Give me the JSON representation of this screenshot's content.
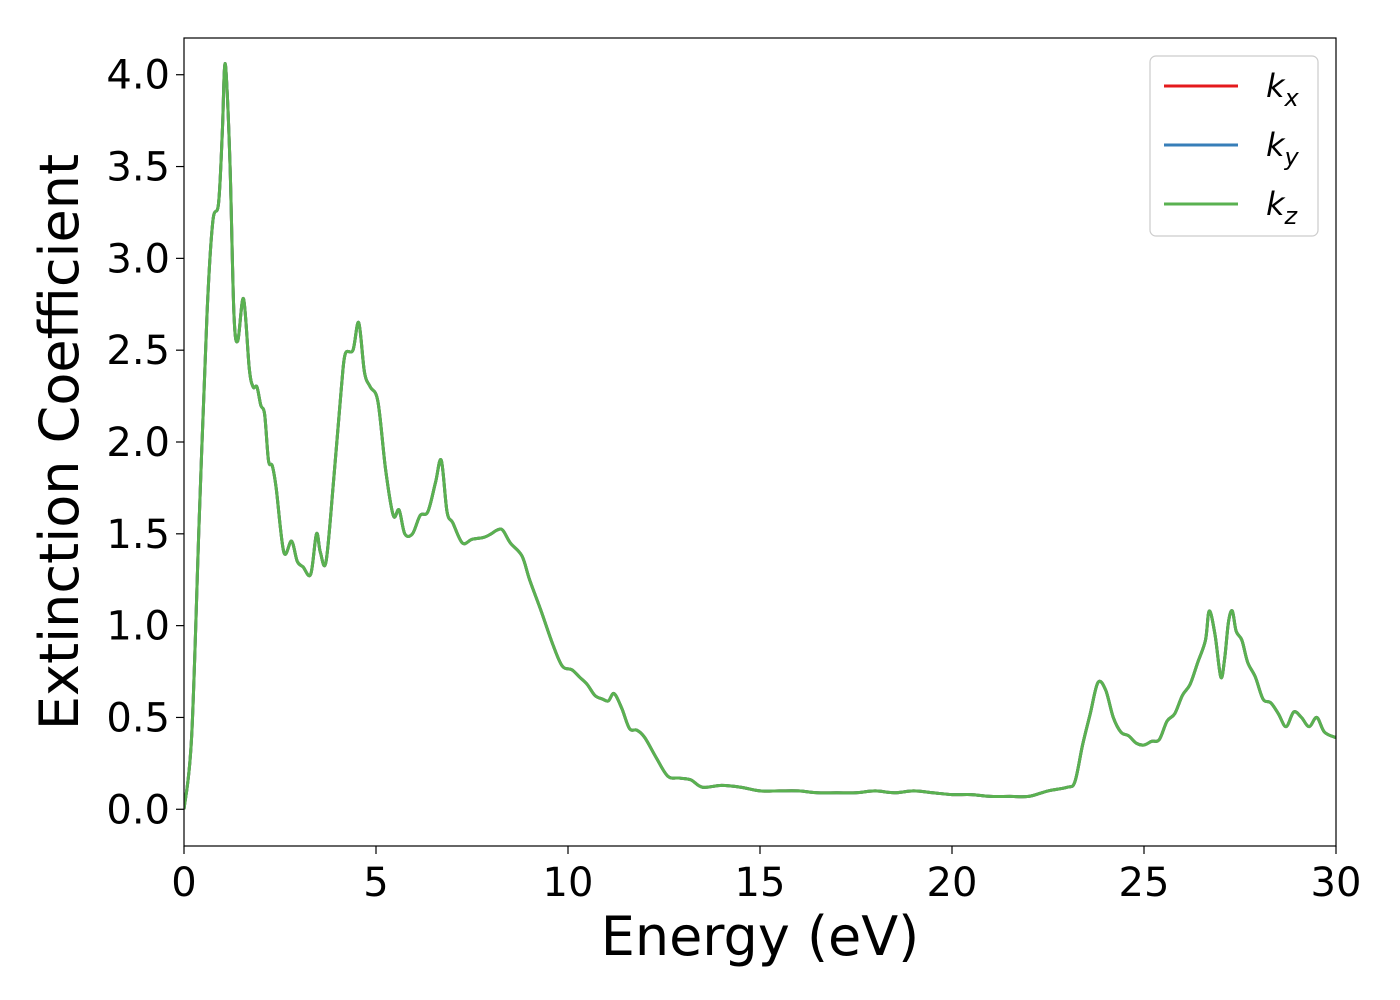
{
  "chart_data": {
    "type": "line",
    "title": "",
    "xlabel": "Energy (eV)",
    "ylabel": "Extinction Coefficient",
    "xlim": [
      0,
      30
    ],
    "ylim": [
      -0.2,
      4.2
    ],
    "xticks": [
      0,
      5,
      10,
      15,
      20,
      25,
      30
    ],
    "yticks": [
      0.0,
      0.5,
      1.0,
      1.5,
      2.0,
      2.5,
      3.0,
      3.5,
      4.0
    ],
    "ytick_labels": [
      "0.0",
      "0.5",
      "1.0",
      "1.5",
      "2.0",
      "2.5",
      "3.0",
      "3.5",
      "4.0"
    ],
    "grid": false,
    "legend_position": "top-right",
    "series": [
      {
        "name": "k_x",
        "legend": {
          "base": "k",
          "sub": "x"
        },
        "color": "#e41a1c",
        "x": [
          0,
          0.2,
          0.4,
          0.6,
          0.75,
          0.9,
          1.0,
          1.05,
          1.1,
          1.2,
          1.3,
          1.4,
          1.55,
          1.7,
          1.8,
          1.9,
          2.0,
          2.1,
          2.2,
          2.3,
          2.4,
          2.6,
          2.8,
          2.95,
          3.1,
          3.3,
          3.45,
          3.55,
          3.7,
          3.9,
          4.1,
          4.2,
          4.4,
          4.55,
          4.7,
          4.85,
          5.05,
          5.25,
          5.45,
          5.6,
          5.75,
          5.95,
          6.15,
          6.35,
          6.55,
          6.7,
          6.85,
          7.0,
          7.25,
          7.5,
          7.8,
          8.0,
          8.15,
          8.3,
          8.5,
          8.8,
          9.0,
          9.3,
          9.6,
          9.85,
          10.1,
          10.3,
          10.5,
          10.7,
          10.9,
          11.05,
          11.2,
          11.4,
          11.6,
          11.8,
          12.0,
          12.3,
          12.6,
          12.9,
          13.2,
          13.5,
          14.0,
          14.5,
          15.0,
          15.5,
          16.0,
          16.5,
          17.0,
          17.5,
          18.0,
          18.5,
          19.0,
          19.5,
          20.0,
          20.5,
          21.0,
          21.5,
          22.0,
          22.5,
          23.0,
          23.2,
          23.4,
          23.6,
          23.8,
          24.0,
          24.2,
          24.4,
          24.6,
          24.8,
          25.0,
          25.2,
          25.4,
          25.6,
          25.8,
          26.0,
          26.2,
          26.4,
          26.6,
          26.7,
          26.85,
          27.0,
          27.1,
          27.2,
          27.3,
          27.4,
          27.55,
          27.7,
          27.9,
          28.1,
          28.3,
          28.5,
          28.7,
          28.9,
          29.1,
          29.3,
          29.5,
          29.7,
          30.0
        ],
        "y": [
          0.0,
          0.4,
          1.6,
          2.7,
          3.2,
          3.3,
          3.7,
          4.02,
          4.0,
          3.5,
          2.7,
          2.55,
          2.78,
          2.4,
          2.3,
          2.3,
          2.2,
          2.15,
          1.9,
          1.87,
          1.75,
          1.4,
          1.46,
          1.35,
          1.32,
          1.28,
          1.5,
          1.4,
          1.35,
          1.8,
          2.3,
          2.48,
          2.5,
          2.65,
          2.38,
          2.3,
          2.22,
          1.85,
          1.6,
          1.63,
          1.5,
          1.5,
          1.6,
          1.62,
          1.78,
          1.9,
          1.62,
          1.56,
          1.45,
          1.47,
          1.48,
          1.5,
          1.52,
          1.52,
          1.45,
          1.38,
          1.25,
          1.08,
          0.9,
          0.78,
          0.76,
          0.72,
          0.68,
          0.62,
          0.6,
          0.59,
          0.63,
          0.55,
          0.44,
          0.43,
          0.39,
          0.28,
          0.18,
          0.17,
          0.16,
          0.12,
          0.13,
          0.12,
          0.1,
          0.1,
          0.1,
          0.09,
          0.09,
          0.09,
          0.1,
          0.09,
          0.1,
          0.09,
          0.08,
          0.08,
          0.07,
          0.07,
          0.07,
          0.1,
          0.12,
          0.15,
          0.35,
          0.52,
          0.69,
          0.65,
          0.5,
          0.42,
          0.4,
          0.36,
          0.35,
          0.37,
          0.38,
          0.48,
          0.52,
          0.62,
          0.68,
          0.8,
          0.92,
          1.08,
          0.95,
          0.72,
          0.82,
          1.02,
          1.08,
          0.97,
          0.92,
          0.8,
          0.72,
          0.6,
          0.58,
          0.52,
          0.45,
          0.53,
          0.5,
          0.45,
          0.5,
          0.42,
          0.39
        ]
      },
      {
        "name": "k_y",
        "legend": {
          "base": "k",
          "sub": "y"
        },
        "color": "#377eb8",
        "x": [
          0,
          0.2,
          0.4,
          0.6,
          0.75,
          0.9,
          1.0,
          1.05,
          1.1,
          1.2,
          1.3,
          1.4,
          1.55,
          1.7,
          1.8,
          1.9,
          2.0,
          2.1,
          2.2,
          2.3,
          2.4,
          2.6,
          2.8,
          2.95,
          3.1,
          3.3,
          3.45,
          3.55,
          3.7,
          3.9,
          4.1,
          4.2,
          4.4,
          4.55,
          4.7,
          4.85,
          5.05,
          5.25,
          5.45,
          5.6,
          5.75,
          5.95,
          6.15,
          6.35,
          6.55,
          6.7,
          6.85,
          7.0,
          7.25,
          7.5,
          7.8,
          8.0,
          8.15,
          8.3,
          8.5,
          8.8,
          9.0,
          9.3,
          9.6,
          9.85,
          10.1,
          10.3,
          10.5,
          10.7,
          10.9,
          11.05,
          11.2,
          11.4,
          11.6,
          11.8,
          12.0,
          12.3,
          12.6,
          12.9,
          13.2,
          13.5,
          14.0,
          14.5,
          15.0,
          15.5,
          16.0,
          16.5,
          17.0,
          17.5,
          18.0,
          18.5,
          19.0,
          19.5,
          20.0,
          20.5,
          21.0,
          21.5,
          22.0,
          22.5,
          23.0,
          23.2,
          23.4,
          23.6,
          23.8,
          24.0,
          24.2,
          24.4,
          24.6,
          24.8,
          25.0,
          25.2,
          25.4,
          25.6,
          25.8,
          26.0,
          26.2,
          26.4,
          26.6,
          26.7,
          26.85,
          27.0,
          27.1,
          27.2,
          27.3,
          27.4,
          27.55,
          27.7,
          27.9,
          28.1,
          28.3,
          28.5,
          28.7,
          28.9,
          29.1,
          29.3,
          29.5,
          29.7,
          30.0
        ],
        "y": [
          0.0,
          0.4,
          1.6,
          2.7,
          3.2,
          3.3,
          3.7,
          4.02,
          4.0,
          3.5,
          2.7,
          2.55,
          2.78,
          2.4,
          2.3,
          2.3,
          2.2,
          2.15,
          1.9,
          1.87,
          1.75,
          1.4,
          1.46,
          1.35,
          1.32,
          1.28,
          1.5,
          1.4,
          1.35,
          1.8,
          2.3,
          2.48,
          2.5,
          2.65,
          2.38,
          2.3,
          2.22,
          1.85,
          1.6,
          1.63,
          1.5,
          1.5,
          1.6,
          1.62,
          1.78,
          1.9,
          1.62,
          1.56,
          1.45,
          1.47,
          1.48,
          1.5,
          1.52,
          1.52,
          1.45,
          1.38,
          1.25,
          1.08,
          0.9,
          0.78,
          0.76,
          0.72,
          0.68,
          0.62,
          0.6,
          0.59,
          0.63,
          0.55,
          0.44,
          0.43,
          0.39,
          0.28,
          0.18,
          0.17,
          0.16,
          0.12,
          0.13,
          0.12,
          0.1,
          0.1,
          0.1,
          0.09,
          0.09,
          0.09,
          0.1,
          0.09,
          0.1,
          0.09,
          0.08,
          0.08,
          0.07,
          0.07,
          0.07,
          0.1,
          0.12,
          0.15,
          0.35,
          0.52,
          0.69,
          0.65,
          0.5,
          0.42,
          0.4,
          0.36,
          0.35,
          0.37,
          0.38,
          0.48,
          0.52,
          0.62,
          0.68,
          0.8,
          0.92,
          1.08,
          0.95,
          0.72,
          0.82,
          1.02,
          1.08,
          0.97,
          0.92,
          0.8,
          0.72,
          0.6,
          0.58,
          0.52,
          0.45,
          0.53,
          0.5,
          0.45,
          0.5,
          0.42,
          0.39
        ]
      },
      {
        "name": "k_z",
        "legend": {
          "base": "k",
          "sub": "z"
        },
        "color": "#5ab150",
        "x": [
          0,
          0.2,
          0.4,
          0.6,
          0.75,
          0.9,
          1.0,
          1.05,
          1.1,
          1.2,
          1.3,
          1.4,
          1.55,
          1.7,
          1.8,
          1.9,
          2.0,
          2.1,
          2.2,
          2.3,
          2.4,
          2.6,
          2.8,
          2.95,
          3.1,
          3.3,
          3.45,
          3.55,
          3.7,
          3.9,
          4.1,
          4.2,
          4.4,
          4.55,
          4.7,
          4.85,
          5.05,
          5.25,
          5.45,
          5.6,
          5.75,
          5.95,
          6.15,
          6.35,
          6.55,
          6.7,
          6.85,
          7.0,
          7.25,
          7.5,
          7.8,
          8.0,
          8.15,
          8.3,
          8.5,
          8.8,
          9.0,
          9.3,
          9.6,
          9.85,
          10.1,
          10.3,
          10.5,
          10.7,
          10.9,
          11.05,
          11.2,
          11.4,
          11.6,
          11.8,
          12.0,
          12.3,
          12.6,
          12.9,
          13.2,
          13.5,
          14.0,
          14.5,
          15.0,
          15.5,
          16.0,
          16.5,
          17.0,
          17.5,
          18.0,
          18.5,
          19.0,
          19.5,
          20.0,
          20.5,
          21.0,
          21.5,
          22.0,
          22.5,
          23.0,
          23.2,
          23.4,
          23.6,
          23.8,
          24.0,
          24.2,
          24.4,
          24.6,
          24.8,
          25.0,
          25.2,
          25.4,
          25.6,
          25.8,
          26.0,
          26.2,
          26.4,
          26.6,
          26.7,
          26.85,
          27.0,
          27.1,
          27.2,
          27.3,
          27.4,
          27.55,
          27.7,
          27.9,
          28.1,
          28.3,
          28.5,
          28.7,
          28.9,
          29.1,
          29.3,
          29.5,
          29.7,
          30.0
        ],
        "y": [
          0.0,
          0.4,
          1.6,
          2.7,
          3.2,
          3.3,
          3.7,
          4.02,
          4.0,
          3.5,
          2.7,
          2.55,
          2.78,
          2.4,
          2.3,
          2.3,
          2.2,
          2.15,
          1.9,
          1.87,
          1.75,
          1.4,
          1.46,
          1.35,
          1.32,
          1.28,
          1.5,
          1.4,
          1.35,
          1.8,
          2.3,
          2.48,
          2.5,
          2.65,
          2.38,
          2.3,
          2.22,
          1.85,
          1.6,
          1.63,
          1.5,
          1.5,
          1.6,
          1.62,
          1.78,
          1.9,
          1.62,
          1.56,
          1.45,
          1.47,
          1.48,
          1.5,
          1.52,
          1.52,
          1.45,
          1.38,
          1.25,
          1.08,
          0.9,
          0.78,
          0.76,
          0.72,
          0.68,
          0.62,
          0.6,
          0.59,
          0.63,
          0.55,
          0.44,
          0.43,
          0.39,
          0.28,
          0.18,
          0.17,
          0.16,
          0.12,
          0.13,
          0.12,
          0.1,
          0.1,
          0.1,
          0.09,
          0.09,
          0.09,
          0.1,
          0.09,
          0.1,
          0.09,
          0.08,
          0.08,
          0.07,
          0.07,
          0.07,
          0.1,
          0.12,
          0.15,
          0.35,
          0.52,
          0.69,
          0.65,
          0.5,
          0.42,
          0.4,
          0.36,
          0.35,
          0.37,
          0.38,
          0.48,
          0.52,
          0.62,
          0.68,
          0.8,
          0.92,
          1.08,
          0.95,
          0.72,
          0.82,
          1.02,
          1.08,
          0.97,
          0.92,
          0.8,
          0.72,
          0.6,
          0.58,
          0.52,
          0.45,
          0.53,
          0.5,
          0.45,
          0.5,
          0.42,
          0.39
        ]
      }
    ]
  }
}
